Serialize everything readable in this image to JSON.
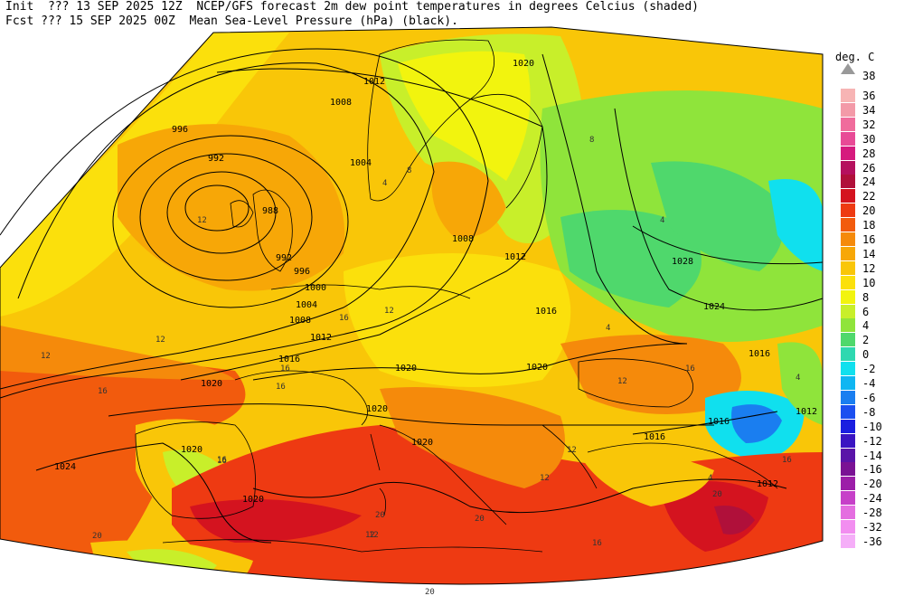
{
  "header": {
    "line1": "Init  ??? 13 SEP 2025 12Z  NCEP/GFS forecast 2m dew point temperatures in degrees Celcius (shaded)",
    "line2": "Fcst ??? 15 SEP 2025 00Z  Mean Sea-Level Pressure (hPa) (black)."
  },
  "legend": {
    "unit": "deg. C",
    "top_label": "38",
    "entries": [
      {
        "label": "36",
        "color": "#f7b4b4"
      },
      {
        "label": "34",
        "color": "#f39aa8"
      },
      {
        "label": "32",
        "color": "#f06c9c"
      },
      {
        "label": "30",
        "color": "#e84a96"
      },
      {
        "label": "28",
        "color": "#d61a7e"
      },
      {
        "label": "26",
        "color": "#b5105e"
      },
      {
        "label": "24",
        "color": "#b0103a"
      },
      {
        "label": "22",
        "color": "#d4131f"
      },
      {
        "label": "20",
        "color": "#ee3a12"
      },
      {
        "label": "18",
        "color": "#f25b0d"
      },
      {
        "label": "16",
        "color": "#f58a0b"
      },
      {
        "label": "14",
        "color": "#f7a707"
      },
      {
        "label": "12",
        "color": "#f9c608"
      },
      {
        "label": "10",
        "color": "#fbe00c"
      },
      {
        "label": "8",
        "color": "#f2f40e"
      },
      {
        "label": "6",
        "color": "#c8ef2a"
      },
      {
        "label": "4",
        "color": "#8fe43b"
      },
      {
        "label": "2",
        "color": "#4fd86c"
      },
      {
        "label": "0",
        "color": "#2ed8b0"
      },
      {
        "label": "-2",
        "color": "#10e0ee"
      },
      {
        "label": "-4",
        "color": "#0fb6f2"
      },
      {
        "label": "-6",
        "color": "#1a7ef0"
      },
      {
        "label": "-8",
        "color": "#1b4ff0"
      },
      {
        "label": "-10",
        "color": "#1a1ee0"
      },
      {
        "label": "-12",
        "color": "#3a14c2"
      },
      {
        "label": "-14",
        "color": "#5a14a8"
      },
      {
        "label": "-16",
        "color": "#7a1294"
      },
      {
        "label": "-20",
        "color": "#9c1ea8"
      },
      {
        "label": "-24",
        "color": "#c640c8"
      },
      {
        "label": "-28",
        "color": "#e46ee0"
      },
      {
        "label": "-32",
        "color": "#f28ef0"
      },
      {
        "label": "-36",
        "color": "#f5aef8"
      }
    ]
  },
  "isobar_labels": [
    "996",
    "992",
    "988",
    "992",
    "996",
    "1000",
    "1004",
    "1008",
    "1012",
    "1016",
    "1020",
    "1024",
    "1028",
    "1012",
    "1008",
    "1004",
    "1012",
    "1016",
    "1020",
    "1024",
    "1020",
    "1020",
    "1020",
    "1020",
    "1020",
    "1016",
    "1016",
    "1012",
    "1016",
    "1012",
    "1020",
    "1008"
  ],
  "dew_labels": [
    "12",
    "12",
    "16",
    "16",
    "16",
    "12",
    "12",
    "16",
    "20",
    "20",
    "20",
    "12",
    "16",
    "12",
    "4",
    "4",
    "8",
    "8",
    "4",
    "4",
    "12",
    "16",
    "12",
    "4",
    "16",
    "16",
    "12",
    "20",
    "16",
    "20"
  ]
}
